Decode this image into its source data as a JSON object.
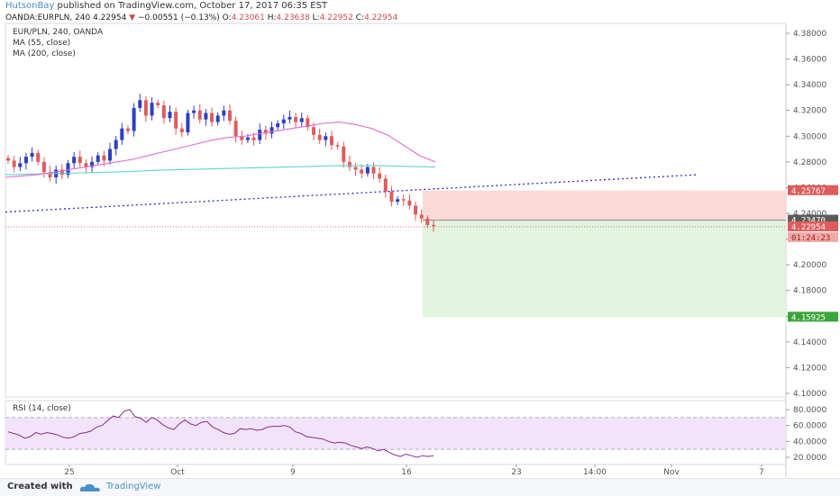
{
  "header": {
    "author": "HutsonBay",
    "published_text": "published on TradingView.com, October 17, 2017 06:35 EST"
  },
  "info": {
    "symbol": "OANDA:EURPLN, 240",
    "last": "4.22954",
    "change": "−0.00551 (−0.13%)",
    "o_label": "O:",
    "o_value": "4.23061",
    "h_label": "H:",
    "h_value": "4.23638",
    "l_label": "L:",
    "l_value": "4.22952",
    "c_label": "C:",
    "c_value": "4.22954"
  },
  "legend": {
    "title": "EUR/PLN, 240, OANDA",
    "ma55": "MA (55, close)",
    "ma200": "MA (200, close)"
  },
  "colors": {
    "up_candle": "#2c3fc4",
    "down_candle": "#e05b5b",
    "ma55": "#e06cd6",
    "ma200": "#5fd1d6",
    "trendline": "#2c2ccf",
    "stop_zone": "#fbd9d6",
    "target_zone": "#e1f4de",
    "rsi_line": "#8b2a8b",
    "rsi_band": "#f1e4fa"
  },
  "footer": {
    "created_with": "Created with",
    "brand": "TradingView"
  },
  "chart_data": [
    {
      "type": "candlestick",
      "title": "EUR/PLN, 240, OANDA",
      "ylim": [
        4.09,
        4.39
      ],
      "y_ticks": [
        "4.38000",
        "4.36000",
        "4.34000",
        "4.32000",
        "4.30000",
        "4.28000",
        "4.26000",
        "4.24000",
        "4.22000",
        "4.20000",
        "4.18000",
        "4.16000",
        "4.14000",
        "4.12000",
        "4.10000"
      ],
      "x_ticks": [
        "25",
        "Oct",
        "9",
        "16",
        "23",
        "14:00",
        "Nov",
        "7"
      ],
      "price_labels": {
        "stop": "4.25767",
        "entry": "4.23470",
        "last": "4.22954",
        "countdown": "01:24:23",
        "target": "4.15925"
      },
      "closes": [
        4.281,
        4.276,
        4.279,
        4.284,
        4.287,
        4.28,
        4.272,
        4.268,
        4.274,
        4.27,
        4.279,
        4.284,
        4.279,
        4.276,
        4.28,
        4.285,
        4.281,
        4.29,
        4.297,
        4.306,
        4.304,
        4.322,
        4.328,
        4.316,
        4.326,
        4.324,
        4.314,
        4.319,
        4.306,
        4.303,
        4.318,
        4.32,
        4.313,
        4.318,
        4.311,
        4.316,
        4.32,
        4.312,
        4.3,
        4.297,
        4.299,
        4.297,
        4.305,
        4.302,
        4.307,
        4.31,
        4.313,
        4.315,
        4.311,
        4.314,
        4.307,
        4.301,
        4.297,
        4.3,
        4.293,
        4.292,
        4.28,
        4.276,
        4.274,
        4.271,
        4.276,
        4.271,
        4.267,
        4.257,
        4.249,
        4.251,
        4.25,
        4.246,
        4.239,
        4.236,
        4.231,
        4.23
      ],
      "ma55": [
        4.268,
        4.269,
        4.27,
        4.272,
        4.274,
        4.276,
        4.278,
        4.28,
        4.282,
        4.285,
        4.288,
        4.291,
        4.294,
        4.297,
        4.299,
        4.3,
        4.302,
        4.304,
        4.306,
        4.308,
        4.31,
        4.311,
        4.309,
        4.306,
        4.301,
        4.293,
        4.285,
        4.28
      ],
      "ma200": [
        4.27,
        4.2705,
        4.271,
        4.2715,
        4.272,
        4.2725,
        4.2735,
        4.274,
        4.2745,
        4.275,
        4.2755,
        4.276,
        4.2765,
        4.277,
        4.277,
        4.277,
        4.2765,
        4.276
      ],
      "trendline": {
        "from": 4.241,
        "to": 4.27
      },
      "stop_price": 4.25767,
      "entry_price": 4.2347,
      "target_price": 4.15925,
      "last_price": 4.22954
    },
    {
      "type": "line",
      "title": "RSI (14, close)",
      "ylim": [
        15,
        87
      ],
      "y_ticks": [
        "80.0000",
        "60.0000",
        "40.0000",
        "20.0000"
      ],
      "band": [
        30,
        70
      ],
      "values": [
        52,
        50,
        48,
        44,
        46,
        51,
        49,
        51,
        50,
        48,
        45,
        44,
        46,
        50,
        51,
        53,
        58,
        60,
        66,
        72,
        70,
        78,
        80,
        71,
        69,
        64,
        70,
        67,
        61,
        57,
        55,
        62,
        67,
        62,
        60,
        64,
        65,
        58,
        55,
        51,
        49,
        50,
        56,
        55,
        56,
        54,
        55,
        58,
        59,
        59,
        60,
        58,
        52,
        50,
        46,
        45,
        44,
        43,
        40,
        38,
        39,
        38,
        35,
        33,
        31,
        33,
        31,
        28,
        30,
        26,
        23,
        21,
        24,
        22,
        20,
        22,
        21,
        22
      ]
    }
  ]
}
